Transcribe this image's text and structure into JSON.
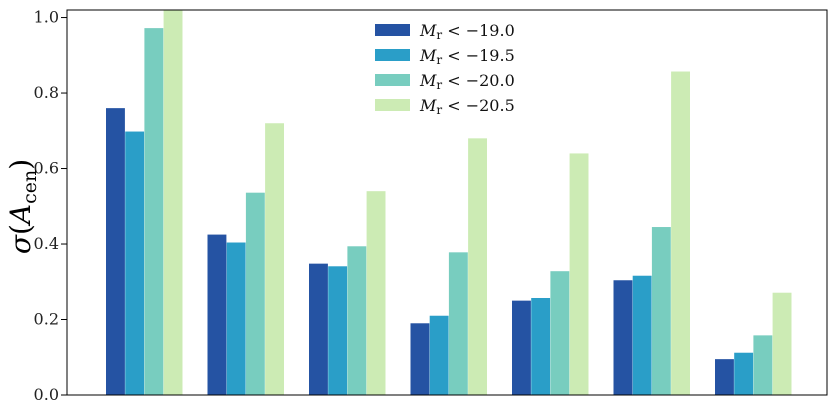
{
  "chart_data": {
    "type": "bar",
    "title": "",
    "xlabel": "",
    "ylabel": "σ(A_cen)",
    "ylabel_parts": {
      "symbol": "σ(",
      "var": "A",
      "sub": "cen",
      "close": ")"
    },
    "ylim": [
      0,
      1.02
    ],
    "yticks": [
      0.0,
      0.2,
      0.4,
      0.6,
      0.8,
      1.0
    ],
    "ytick_labels": [
      "0.0",
      "0.2",
      "0.4",
      "0.6",
      "0.8",
      "1.0"
    ],
    "categories": [
      "",
      "",
      "",
      "",
      "",
      "",
      ""
    ],
    "legend_position": "top-center",
    "grid": false,
    "series": [
      {
        "name": "M_r < −19.0",
        "legend": {
          "var": "M",
          "sub": "r",
          "rest": " < −19.0"
        },
        "color": "#2553a3",
        "values": [
          0.76,
          0.425,
          0.348,
          0.19,
          0.25,
          0.304,
          0.095
        ]
      },
      {
        "name": "M_r < −19.5",
        "legend": {
          "var": "M",
          "sub": "r",
          "rest": " < −19.5"
        },
        "color": "#2a9ec8",
        "values": [
          0.698,
          0.404,
          0.341,
          0.21,
          0.257,
          0.316,
          0.112
        ]
      },
      {
        "name": "M_r < −20.0",
        "legend": {
          "var": "M",
          "sub": "r",
          "rest": " < −20.0"
        },
        "color": "#78cdbf",
        "values": [
          0.972,
          0.536,
          0.394,
          0.378,
          0.328,
          0.445,
          0.158
        ]
      },
      {
        "name": "M_r < −20.5",
        "legend": {
          "var": "M",
          "sub": "r",
          "rest": " < −20.5"
        },
        "color": "#ccebb4",
        "values": [
          1.05,
          0.72,
          0.54,
          0.68,
          0.64,
          0.857,
          0.271
        ]
      }
    ]
  }
}
